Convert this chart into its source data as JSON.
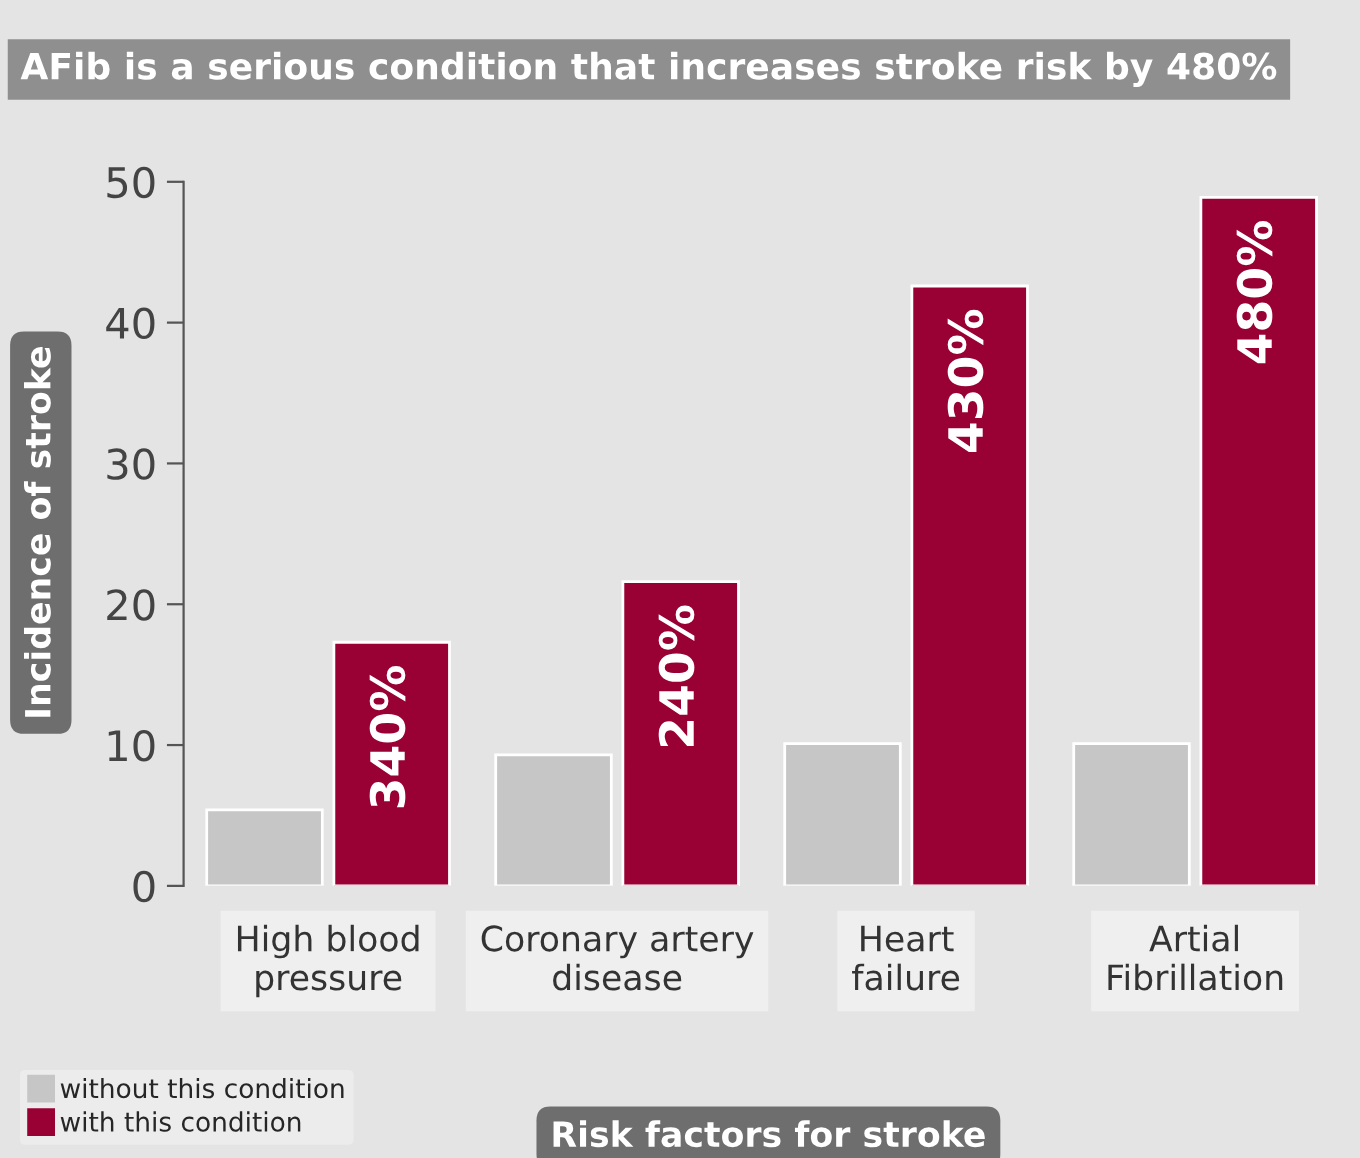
{
  "chart_data": {
    "type": "bar",
    "title": "AFib is a serious condition that increases stroke risk by 480%",
    "categories": [
      "High blood\npressure",
      "Coronary artery\ndisease",
      "Heart\nfailure",
      "Artial\nFibrillation"
    ],
    "series": [
      {
        "name": "without this condition",
        "color": "#c6c6c6",
        "values": [
          5.4,
          9.3,
          10.1,
          10.1
        ]
      },
      {
        "name": "with this condition",
        "color": "#990033",
        "values": [
          17.3,
          21.6,
          42.6,
          48.9
        ]
      }
    ],
    "annotations": [
      {
        "text": "340%",
        "x": "High blood\npressure",
        "y": 17.3
      },
      {
        "text": "240%",
        "x": "Coronary artery\ndisease",
        "y": 21.6
      },
      {
        "text": "430%",
        "x": "Heart\nfailure",
        "y": 42.6
      },
      {
        "text": "480%",
        "x": "Artial\nFibrillation",
        "y": 48.9
      }
    ],
    "xlabel": "Risk factors for stroke",
    "ylabel": "Incidence of stroke",
    "ylim": [
      0,
      50
    ],
    "yticks": [
      0,
      10,
      20,
      30,
      40,
      50
    ],
    "grid": false,
    "legend": "bottom left"
  }
}
